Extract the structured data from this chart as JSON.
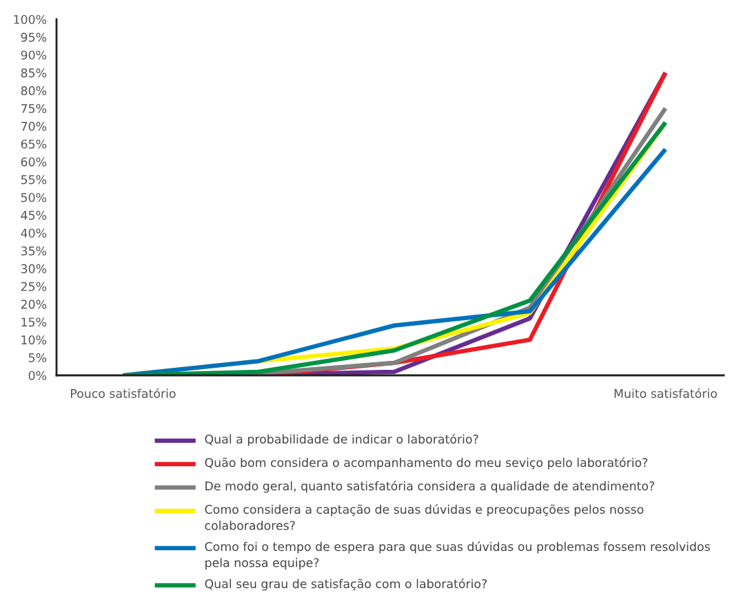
{
  "chart_data": {
    "type": "line",
    "categories": [
      "Pouco satisfatório",
      null,
      null,
      null,
      "Muito satisfatório"
    ],
    "series": [
      {
        "name": "Qual a probabilidade de indicar o laboratório?",
        "color": "#662d91",
        "values": [
          0,
          0.2,
          1,
          16,
          85
        ]
      },
      {
        "name": "Quão bom considera o acompanhamento do meu seviço pelo laboratório?",
        "color": "#ed1c24",
        "values": [
          0,
          0,
          3.5,
          10,
          85
        ]
      },
      {
        "name": "De modo geral, quanto satisfatória considera a qualidade de atendimento?",
        "color": "#808080",
        "values": [
          0,
          0.5,
          3.5,
          19,
          75
        ]
      },
      {
        "name": "Como considera a captação de suas dúvidas e preocupações pelos nosso colaboradores?",
        "color": "#fff200",
        "values": [
          0,
          4,
          7.5,
          17.5,
          71
        ]
      },
      {
        "name": "Como foi o tempo de espera para que suas dúvidas ou problemas fossem resolvidos pela nossa equipe?",
        "color": "#0072bc",
        "values": [
          0,
          4,
          14,
          18,
          63.5
        ]
      },
      {
        "name": "Qual seu grau de satisfação com o laboratório?",
        "color": "#009245",
        "values": [
          0,
          1,
          7,
          21,
          71
        ]
      }
    ],
    "ylim": [
      0,
      100
    ],
    "yticks": [
      {
        "value": 0,
        "label": "0%"
      },
      {
        "value": 5,
        "label": "5%"
      },
      {
        "value": 10,
        "label": "10%"
      },
      {
        "value": 15,
        "label": "15%"
      },
      {
        "value": 20,
        "label": "20%"
      },
      {
        "value": 25,
        "label": "25%"
      },
      {
        "value": 30,
        "label": "30%"
      },
      {
        "value": 35,
        "label": "35%"
      },
      {
        "value": 40,
        "label": "40%"
      },
      {
        "value": 45,
        "label": "45%"
      },
      {
        "value": 50,
        "label": "50%"
      },
      {
        "value": 55,
        "label": "55%"
      },
      {
        "value": 60,
        "label": "60%"
      },
      {
        "value": 65,
        "label": "65%"
      },
      {
        "value": 70,
        "label": "70%"
      },
      {
        "value": 75,
        "label": "75%"
      },
      {
        "value": 80,
        "label": "80%"
      },
      {
        "value": 85,
        "label": "85%"
      },
      {
        "value": 90,
        "label": "90%"
      },
      {
        "value": 95,
        "label": "95%"
      },
      {
        "value": 100,
        "label": "100%"
      }
    ],
    "legend": "bottom",
    "grid": false,
    "marker": "none",
    "line_style": "solid"
  }
}
